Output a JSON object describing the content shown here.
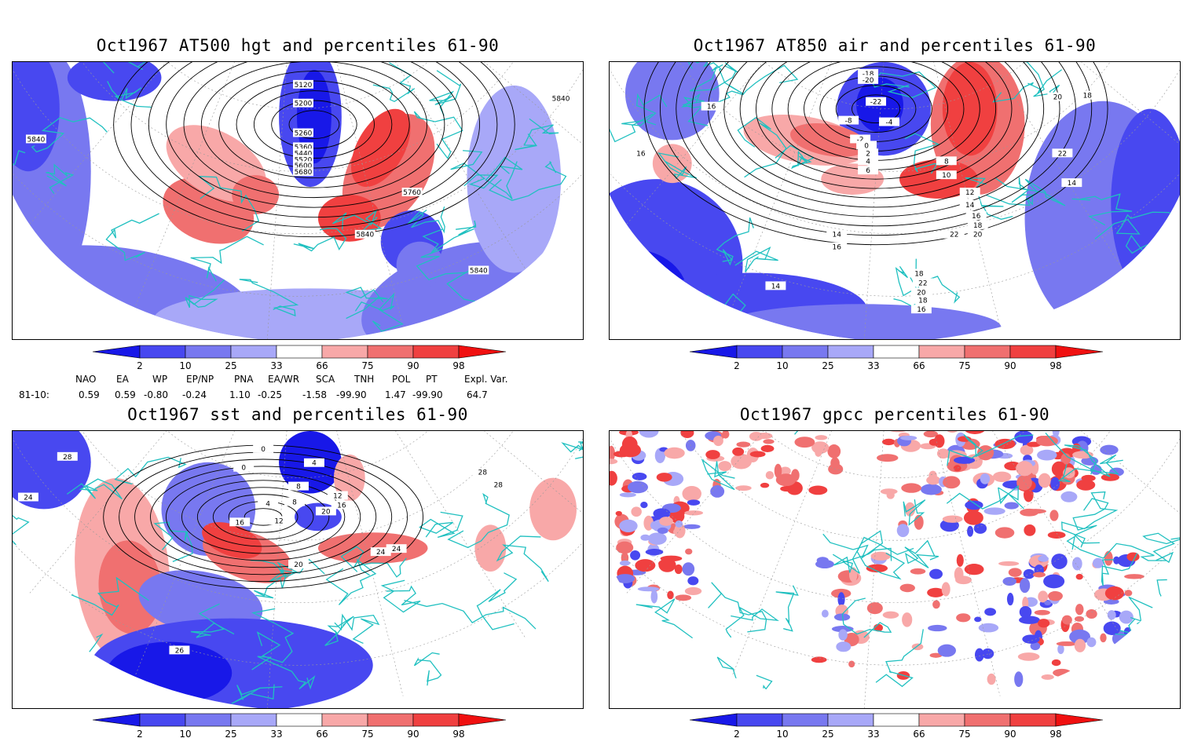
{
  "panels": [
    {
      "title": "Oct1967 AT500 hgt and percentiles 61-90",
      "contour_labels": [
        "5120",
        "5200",
        "5260",
        "5360",
        "5440",
        "5520",
        "5600",
        "5680",
        "5760",
        "5840",
        "5840",
        "5840",
        "5840"
      ]
    },
    {
      "title": "Oct1967 AT850 air and percentiles 61-90",
      "contour_labels": [
        "-18",
        "-20",
        "-22",
        "-8",
        "-4",
        "-2",
        "0",
        "2",
        "4",
        "6",
        "8",
        "10",
        "12",
        "14",
        "16",
        "18",
        "20",
        "22",
        "14",
        "16",
        "18",
        "22",
        "20",
        "18",
        "16",
        "14",
        "16",
        "16",
        "18",
        "20",
        "22",
        "14"
      ]
    },
    {
      "title": "Oct1967 sst and percentiles 61-90",
      "contour_labels": [
        "28",
        "24",
        "0",
        "0",
        "4",
        "8",
        "4",
        "8",
        "12",
        "16",
        "20",
        "24",
        "24",
        "12",
        "16",
        "20",
        "28",
        "28",
        "26"
      ]
    },
    {
      "title": "Oct1967 gpcc percentiles 61-90",
      "contour_labels": []
    }
  ],
  "colorbar": {
    "ticks": [
      "2",
      "10",
      "25",
      "33",
      "66",
      "75",
      "90",
      "98"
    ],
    "colors": [
      "#1818e8",
      "#4848f0",
      "#7878f0",
      "#a8a8f8",
      "#ffffff",
      "#f8a8a8",
      "#f07070",
      "#f04040",
      "#f01010"
    ]
  },
  "indices": {
    "headers": [
      "NAO",
      "EA",
      "WP",
      "EP/NP",
      "PNA",
      "EA/WR",
      "SCA",
      "TNH",
      "POL",
      "PT",
      "Expl. Var."
    ],
    "row_label": "81-10:",
    "values": [
      "0.59",
      "0.59",
      "-0.80",
      "-0.24",
      "1.10",
      "-0.25",
      "-1.58",
      "-99.90",
      "1.47",
      "-99.90",
      "64.7"
    ]
  },
  "style": {
    "coast_color": "#20c0c0",
    "contour_color": "#000000",
    "grid_color": "#999999"
  }
}
